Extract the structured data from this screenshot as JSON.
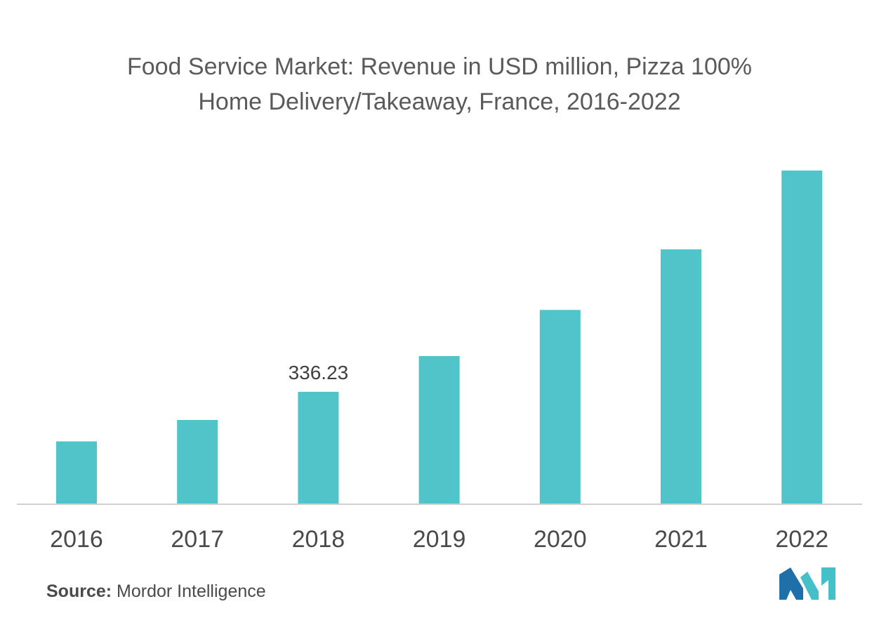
{
  "title": {
    "line1": "Food Service Market: Revenue in USD million, Pizza 100%",
    "line2": "Home Delivery/Takeaway, France, 2016-2022"
  },
  "source": {
    "label": "Source:",
    "value": "Mordor Intelligence"
  },
  "logo": {
    "icon": "mordor-intelligence-logo-icon",
    "colors": [
      "#1f6fa8",
      "#45c0c8"
    ]
  },
  "chart_data": {
    "type": "bar",
    "title": "Food Service Market: Revenue in USD million, Pizza 100% Home Delivery/Takeaway, France, 2016-2022",
    "categories": [
      "2016",
      "2017",
      "2018",
      "2019",
      "2020",
      "2021",
      "2022"
    ],
    "values": [
      188,
      252,
      336.23,
      443,
      581,
      762,
      998
    ],
    "data_labels": [
      null,
      null,
      "336.23",
      null,
      null,
      null,
      null
    ],
    "ylim": [
      0,
      1050
    ],
    "xlabel": "",
    "ylabel": "",
    "grid": false,
    "legend": "none",
    "bar_color": "#50c4c9",
    "axis_color": "#d0d0d0"
  }
}
